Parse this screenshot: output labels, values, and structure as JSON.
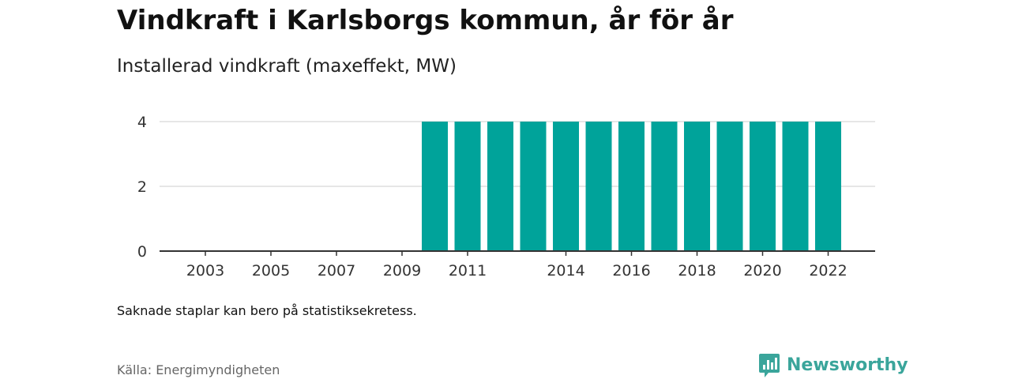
{
  "header": {
    "title": "Vindkraft i Karlsborgs kommun, år för år",
    "subtitle": "Installerad vindkraft (maxeffekt, MW)"
  },
  "footer": {
    "note": "Saknade staplar kan bero på statistiksekretess.",
    "source": "Källa: Energimyndigheten",
    "brand": "Newsworthy"
  },
  "colors": {
    "bar": "#00a39a",
    "brand": "#3aa59b",
    "grid": "#dddddd",
    "axis": "#333333",
    "tick_text": "#333333"
  },
  "icons": {
    "brand_logo": "bar-chart-speech-bubble-icon"
  },
  "chart_data": {
    "type": "bar",
    "title": "",
    "xlabel": "",
    "ylabel": "",
    "ylim": [
      0,
      4.5
    ],
    "yticks": [
      0,
      2,
      4
    ],
    "grid": true,
    "legend": "none",
    "categories": [
      "2002",
      "2003",
      "2004",
      "2005",
      "2006",
      "2007",
      "2008",
      "2009",
      "2010",
      "2011",
      "2012",
      "2013",
      "2014",
      "2015",
      "2016",
      "2017",
      "2018",
      "2019",
      "2020",
      "2021",
      "2022"
    ],
    "x_tick_labels": [
      "2003",
      "2005",
      "2007",
      "2009",
      "2011",
      "2014",
      "2016",
      "2018",
      "2020",
      "2022"
    ],
    "values": [
      0,
      0,
      0,
      0,
      0,
      0,
      0,
      0,
      4,
      4,
      4,
      4,
      4,
      4,
      4,
      4,
      4,
      4,
      4,
      4,
      4
    ]
  }
}
